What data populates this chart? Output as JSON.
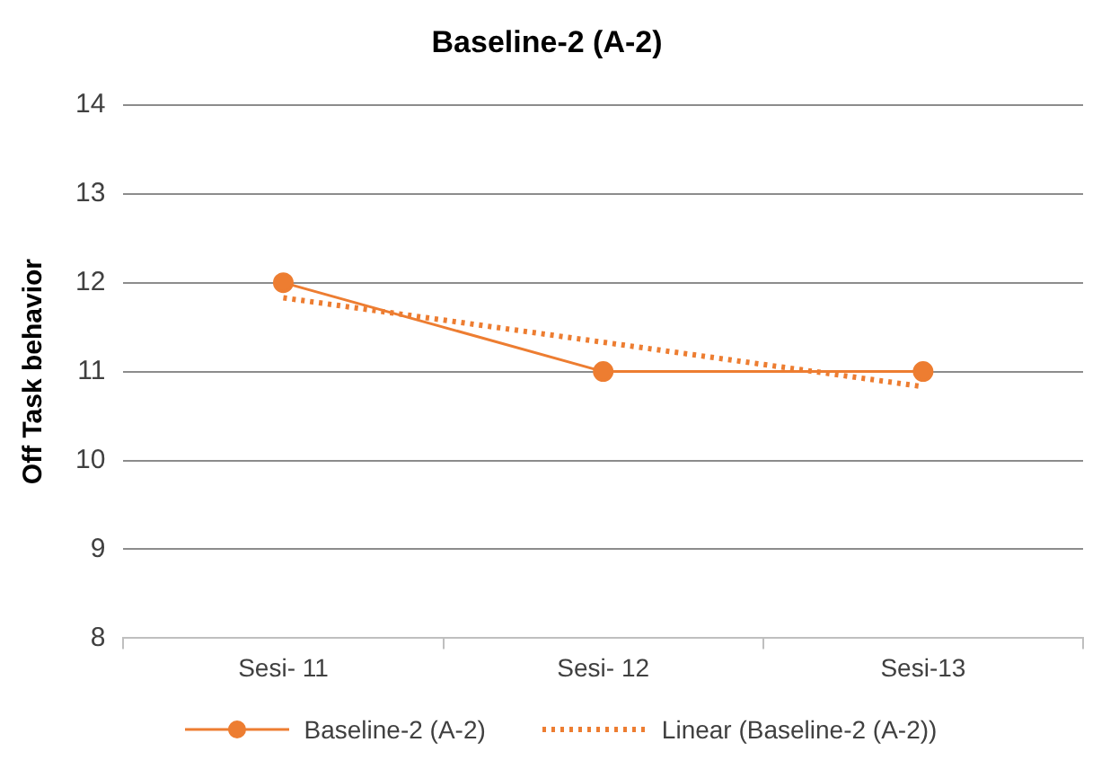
{
  "chart_data": {
    "type": "line",
    "title": "Baseline-2 (A-2)",
    "ylabel": "Off Task behavior",
    "categories": [
      "Sesi- 11",
      "Sesi- 12",
      "Sesi-13"
    ],
    "series": [
      {
        "name": "Baseline-2 (A-2)",
        "color": "#ed7d31",
        "values": [
          12,
          11,
          11
        ],
        "marker": "circle",
        "line_style": "solid"
      },
      {
        "name": "Linear (Baseline-2 (A-2))",
        "color": "#ed7d31",
        "values": [
          11.83,
          11.33,
          10.83
        ],
        "marker": "none",
        "line_style": "dotted"
      }
    ],
    "ylim": [
      8,
      14
    ],
    "yticks": [
      8,
      9,
      10,
      11,
      12,
      13,
      14
    ],
    "grid": "y",
    "legend": "bottom"
  }
}
